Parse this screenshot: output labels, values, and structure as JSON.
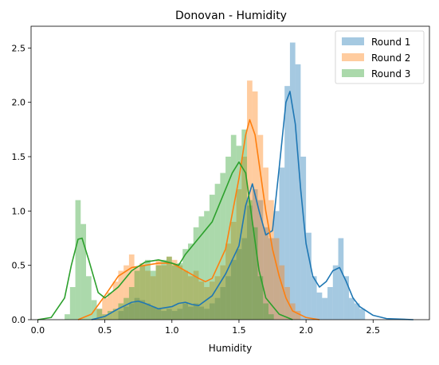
{
  "chart_data": {
    "type": "histogram",
    "title": "Donovan - Humidity",
    "xlabel": "Humidity",
    "ylabel": "",
    "xlim": [
      -0.05,
      2.92
    ],
    "ylim": [
      0,
      2.7
    ],
    "x_ticks": [
      "0.0",
      "0.5",
      "1.0",
      "1.5",
      "2.0",
      "2.5"
    ],
    "y_ticks": [
      "0.0",
      "0.5",
      "1.0",
      "1.5",
      "2.0",
      "2.5"
    ],
    "legend_position": "top-right",
    "grid": false,
    "series": [
      {
        "name": "Round 1",
        "color": "#1f77b4",
        "bin_width": 0.04,
        "bins": [
          [
            0.6,
            0.08
          ],
          [
            0.64,
            0.12
          ],
          [
            0.68,
            0.15
          ],
          [
            0.72,
            0.2
          ],
          [
            0.76,
            0.18
          ],
          [
            0.8,
            0.15
          ],
          [
            0.84,
            0.12
          ],
          [
            0.88,
            0.1
          ],
          [
            0.92,
            0.08
          ],
          [
            0.96,
            0.1
          ],
          [
            1.0,
            0.08
          ],
          [
            1.04,
            0.1
          ],
          [
            1.08,
            0.15
          ],
          [
            1.12,
            0.12
          ],
          [
            1.16,
            0.15
          ],
          [
            1.2,
            0.12
          ],
          [
            1.24,
            0.1
          ],
          [
            1.28,
            0.15
          ],
          [
            1.32,
            0.2
          ],
          [
            1.36,
            0.3
          ],
          [
            1.4,
            0.4
          ],
          [
            1.44,
            0.55
          ],
          [
            1.48,
            0.65
          ],
          [
            1.52,
            0.75
          ],
          [
            1.56,
            1.05
          ],
          [
            1.6,
            1.2
          ],
          [
            1.64,
            1.1
          ],
          [
            1.68,
            0.85
          ],
          [
            1.72,
            0.75
          ],
          [
            1.76,
            1.0
          ],
          [
            1.8,
            1.4
          ],
          [
            1.84,
            2.15
          ],
          [
            1.88,
            2.55
          ],
          [
            1.92,
            2.35
          ],
          [
            1.96,
            1.5
          ],
          [
            2.0,
            0.8
          ],
          [
            2.04,
            0.4
          ],
          [
            2.08,
            0.25
          ],
          [
            2.12,
            0.2
          ],
          [
            2.16,
            0.3
          ],
          [
            2.2,
            0.5
          ],
          [
            2.24,
            0.75
          ],
          [
            2.28,
            0.4
          ],
          [
            2.32,
            0.2
          ],
          [
            2.36,
            0.15
          ],
          [
            2.4,
            0.1
          ]
        ],
        "kde": [
          [
            0.4,
            0.0
          ],
          [
            0.5,
            0.03
          ],
          [
            0.6,
            0.1
          ],
          [
            0.7,
            0.16
          ],
          [
            0.75,
            0.17
          ],
          [
            0.8,
            0.15
          ],
          [
            0.9,
            0.1
          ],
          [
            1.0,
            0.12
          ],
          [
            1.05,
            0.15
          ],
          [
            1.1,
            0.16
          ],
          [
            1.15,
            0.14
          ],
          [
            1.2,
            0.13
          ],
          [
            1.3,
            0.22
          ],
          [
            1.4,
            0.42
          ],
          [
            1.45,
            0.55
          ],
          [
            1.5,
            0.68
          ],
          [
            1.55,
            1.05
          ],
          [
            1.6,
            1.25
          ],
          [
            1.65,
            1.0
          ],
          [
            1.7,
            0.78
          ],
          [
            1.75,
            0.82
          ],
          [
            1.8,
            1.4
          ],
          [
            1.85,
            2.0
          ],
          [
            1.88,
            2.1
          ],
          [
            1.92,
            1.8
          ],
          [
            1.96,
            1.2
          ],
          [
            2.0,
            0.7
          ],
          [
            2.05,
            0.4
          ],
          [
            2.1,
            0.3
          ],
          [
            2.15,
            0.35
          ],
          [
            2.2,
            0.45
          ],
          [
            2.25,
            0.48
          ],
          [
            2.3,
            0.35
          ],
          [
            2.35,
            0.2
          ],
          [
            2.4,
            0.12
          ],
          [
            2.5,
            0.04
          ],
          [
            2.6,
            0.01
          ],
          [
            2.8,
            0.0
          ]
        ]
      },
      {
        "name": "Round 2",
        "color": "#ff7f0e",
        "bin_width": 0.04,
        "bins": [
          [
            0.44,
            0.1
          ],
          [
            0.48,
            0.2
          ],
          [
            0.52,
            0.25
          ],
          [
            0.56,
            0.35
          ],
          [
            0.6,
            0.45
          ],
          [
            0.64,
            0.5
          ],
          [
            0.68,
            0.6
          ],
          [
            0.72,
            0.48
          ],
          [
            0.76,
            0.52
          ],
          [
            0.8,
            0.45
          ],
          [
            0.84,
            0.4
          ],
          [
            0.88,
            0.55
          ],
          [
            0.92,
            0.5
          ],
          [
            0.96,
            0.58
          ],
          [
            1.0,
            0.55
          ],
          [
            1.04,
            0.5
          ],
          [
            1.08,
            0.45
          ],
          [
            1.12,
            0.4
          ],
          [
            1.16,
            0.45
          ],
          [
            1.2,
            0.35
          ],
          [
            1.24,
            0.3
          ],
          [
            1.28,
            0.35
          ],
          [
            1.32,
            0.4
          ],
          [
            1.36,
            0.5
          ],
          [
            1.4,
            0.7
          ],
          [
            1.44,
            0.9
          ],
          [
            1.48,
            1.2
          ],
          [
            1.52,
            1.5
          ],
          [
            1.56,
            2.2
          ],
          [
            1.6,
            2.1
          ],
          [
            1.64,
            1.7
          ],
          [
            1.68,
            1.4
          ],
          [
            1.72,
            1.1
          ],
          [
            1.76,
            0.75
          ],
          [
            1.8,
            0.5
          ],
          [
            1.84,
            0.3
          ],
          [
            1.88,
            0.15
          ],
          [
            1.92,
            0.08
          ]
        ],
        "kde": [
          [
            0.3,
            0.0
          ],
          [
            0.4,
            0.05
          ],
          [
            0.5,
            0.22
          ],
          [
            0.6,
            0.4
          ],
          [
            0.7,
            0.48
          ],
          [
            0.8,
            0.5
          ],
          [
            0.9,
            0.52
          ],
          [
            1.0,
            0.52
          ],
          [
            1.1,
            0.45
          ],
          [
            1.2,
            0.38
          ],
          [
            1.25,
            0.35
          ],
          [
            1.3,
            0.38
          ],
          [
            1.4,
            0.65
          ],
          [
            1.5,
            1.3
          ],
          [
            1.55,
            1.7
          ],
          [
            1.58,
            1.84
          ],
          [
            1.62,
            1.7
          ],
          [
            1.7,
            1.0
          ],
          [
            1.75,
            0.65
          ],
          [
            1.8,
            0.4
          ],
          [
            1.85,
            0.2
          ],
          [
            1.9,
            0.08
          ],
          [
            2.0,
            0.02
          ],
          [
            2.1,
            0.0
          ]
        ]
      },
      {
        "name": "Round 3",
        "color": "#2ca02c",
        "bin_width": 0.04,
        "bins": [
          [
            0.2,
            0.05
          ],
          [
            0.24,
            0.3
          ],
          [
            0.28,
            1.1
          ],
          [
            0.32,
            0.88
          ],
          [
            0.36,
            0.4
          ],
          [
            0.4,
            0.18
          ],
          [
            0.44,
            0.1
          ],
          [
            0.48,
            0.05
          ],
          [
            0.52,
            0.08
          ],
          [
            0.56,
            0.1
          ],
          [
            0.6,
            0.15
          ],
          [
            0.64,
            0.2
          ],
          [
            0.68,
            0.3
          ],
          [
            0.72,
            0.45
          ],
          [
            0.76,
            0.5
          ],
          [
            0.8,
            0.55
          ],
          [
            0.84,
            0.45
          ],
          [
            0.88,
            0.5
          ],
          [
            0.92,
            0.55
          ],
          [
            0.96,
            0.58
          ],
          [
            1.0,
            0.5
          ],
          [
            1.04,
            0.52
          ],
          [
            1.08,
            0.65
          ],
          [
            1.12,
            0.7
          ],
          [
            1.16,
            0.85
          ],
          [
            1.2,
            0.95
          ],
          [
            1.24,
            1.0
          ],
          [
            1.28,
            1.15
          ],
          [
            1.32,
            1.25
          ],
          [
            1.36,
            1.35
          ],
          [
            1.4,
            1.5
          ],
          [
            1.44,
            1.7
          ],
          [
            1.48,
            1.6
          ],
          [
            1.52,
            1.75
          ],
          [
            1.56,
            1.1
          ],
          [
            1.6,
            0.85
          ],
          [
            1.64,
            0.4
          ],
          [
            1.68,
            0.15
          ],
          [
            1.72,
            0.05
          ]
        ],
        "kde": [
          [
            0.0,
            0.0
          ],
          [
            0.1,
            0.02
          ],
          [
            0.2,
            0.2
          ],
          [
            0.25,
            0.5
          ],
          [
            0.3,
            0.74
          ],
          [
            0.33,
            0.75
          ],
          [
            0.38,
            0.55
          ],
          [
            0.45,
            0.25
          ],
          [
            0.5,
            0.2
          ],
          [
            0.6,
            0.3
          ],
          [
            0.7,
            0.45
          ],
          [
            0.8,
            0.53
          ],
          [
            0.9,
            0.55
          ],
          [
            1.0,
            0.52
          ],
          [
            1.05,
            0.5
          ],
          [
            1.1,
            0.6
          ],
          [
            1.2,
            0.75
          ],
          [
            1.3,
            0.9
          ],
          [
            1.4,
            1.2
          ],
          [
            1.45,
            1.35
          ],
          [
            1.5,
            1.45
          ],
          [
            1.55,
            1.35
          ],
          [
            1.6,
            0.9
          ],
          [
            1.65,
            0.45
          ],
          [
            1.7,
            0.2
          ],
          [
            1.8,
            0.05
          ],
          [
            1.9,
            0.0
          ]
        ]
      }
    ]
  }
}
